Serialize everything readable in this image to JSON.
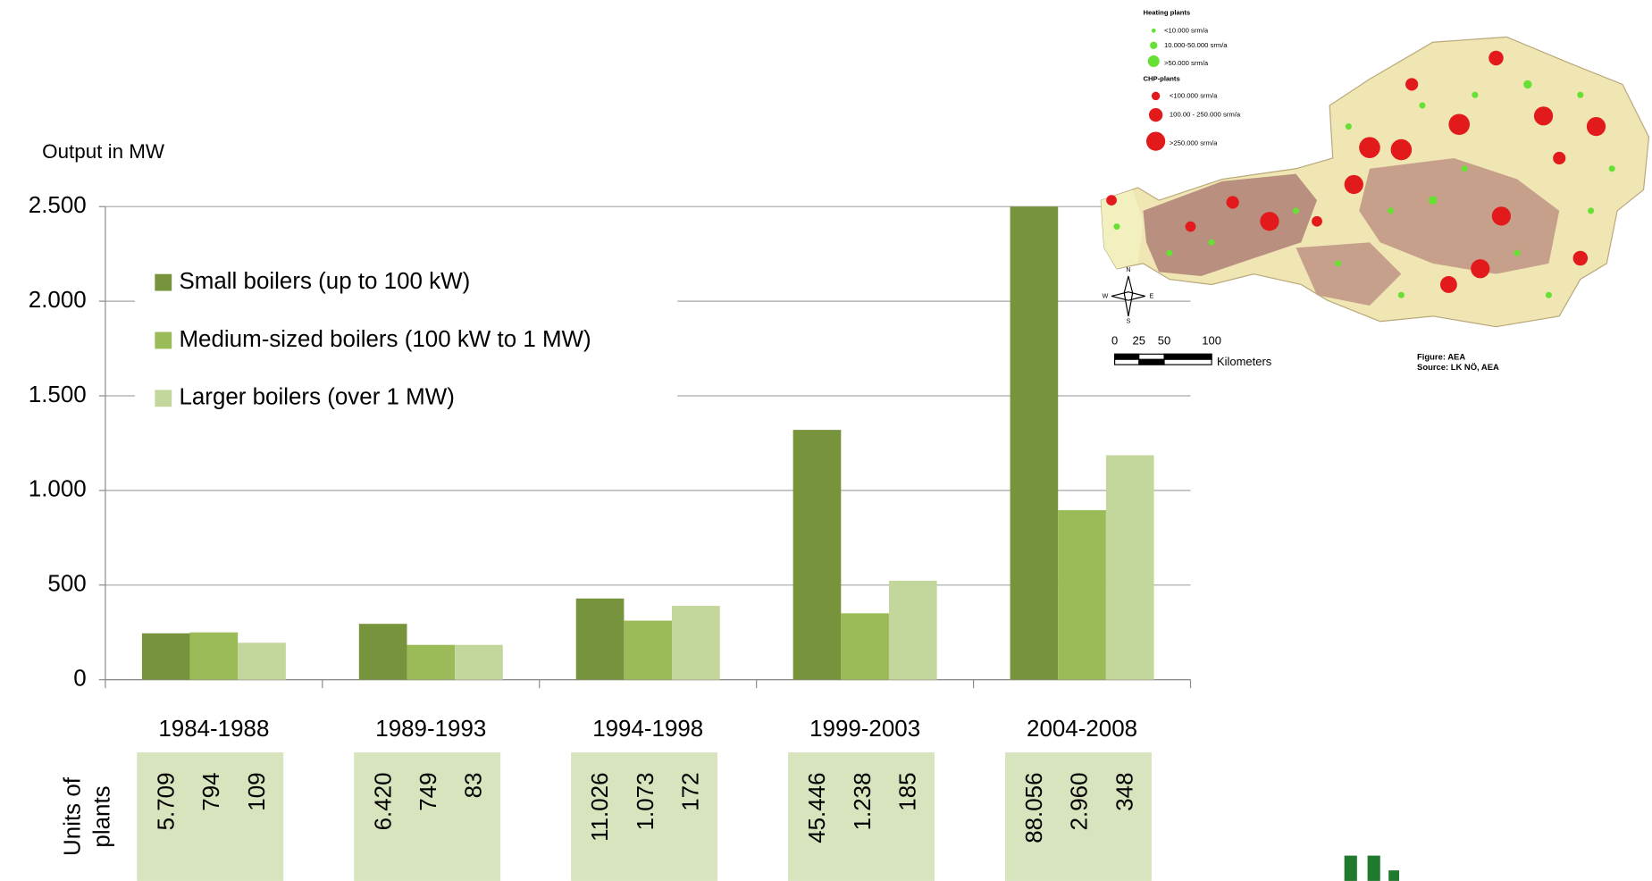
{
  "chart_data": {
    "type": "bar",
    "y_label": "Output in MW",
    "categories": [
      "1984-1988",
      "1989-1993",
      "1994-1998",
      "1999-2003",
      "2004-2008"
    ],
    "series": [
      {
        "name": "Small boilers (up to 100 kW)",
        "color": "#77933c",
        "values": [
          245,
          295,
          429,
          1320,
          2500
        ]
      },
      {
        "name": "Medium-sized boilers (100 kW to 1 MW)",
        "color": "#9bbb59",
        "values": [
          250,
          184,
          312,
          351,
          896
        ]
      },
      {
        "name": "Larger boilers (over 1 MW)",
        "color": "#c3d69b",
        "values": [
          195,
          184,
          390,
          523,
          1186
        ]
      }
    ],
    "ylim": [
      0,
      2500
    ],
    "yticks": [
      0,
      500,
      {
        "value": 1000,
        "label": "1.000"
      },
      {
        "value": 1500,
        "label": "1.500"
      },
      {
        "value": 2000,
        "label": "2.000"
      },
      {
        "value": 2500,
        "label": "2.500"
      }
    ],
    "grid": true,
    "units": {
      "label": [
        "Units of",
        "plants"
      ],
      "values": [
        [
          "5.709",
          "794",
          "109"
        ],
        [
          "6.420",
          "749",
          "83"
        ],
        [
          "11.026",
          "1.073",
          "172"
        ],
        [
          "45.446",
          "1.238",
          "185"
        ],
        [
          "88.056",
          "2.960",
          "348"
        ]
      ]
    }
  },
  "map": {
    "heating_title": "Heating plants",
    "heating": [
      "<10.000 srm/a",
      "10.000-50.000 srm/a",
      ">50.000 srm/a"
    ],
    "chp_title": "CHP-plants",
    "chp": [
      "<100.000 srm/a",
      "100.00 - 250.000 srm/a",
      ">250.000 srm/a"
    ],
    "compass": [
      "N",
      "W",
      "E",
      "S"
    ],
    "scale": [
      "0",
      "25",
      "50",
      "100"
    ],
    "scale_unit": "Kilometers",
    "figure": "Figure: AEA",
    "source": "Source: LK NÖ, AEA"
  }
}
